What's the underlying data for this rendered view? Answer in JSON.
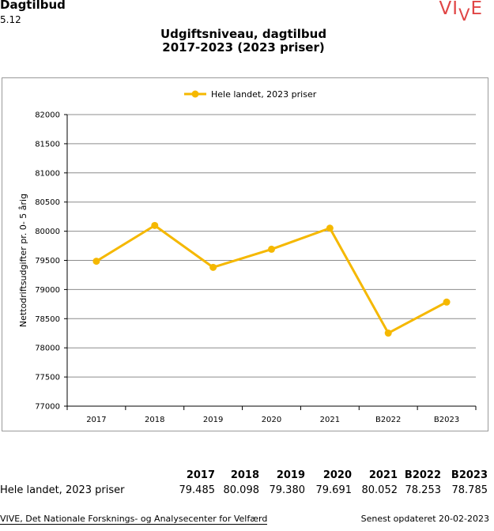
{
  "header": {
    "title": "Dagtilbud",
    "number": "5.12",
    "logo_text": "VIVE"
  },
  "chart_data": {
    "type": "line",
    "title_line1": "Udgiftsniveau, dagtilbud",
    "title_line2": "2017-2023 (2023 priser)",
    "ylabel": "Nettodriftsudgifter pr. 0- 5 årig",
    "xlabel": "",
    "ylim": [
      77000,
      82000
    ],
    "y_ticks": [
      77000,
      77500,
      78000,
      78500,
      79000,
      79500,
      80000,
      80500,
      81000,
      81500,
      82000
    ],
    "categories": [
      "2017",
      "2018",
      "2019",
      "2020",
      "2021",
      "B2022",
      "B2023"
    ],
    "series": [
      {
        "name": "Hele landet, 2023 priser",
        "values": [
          79485,
          80098,
          79380,
          79691,
          80052,
          78253,
          78785
        ],
        "color": "#f5b800"
      }
    ],
    "grid": true,
    "legend_position": "top-center"
  },
  "table": {
    "headers": [
      "2017",
      "2018",
      "2019",
      "2020",
      "2021",
      "B2022",
      "B2023"
    ],
    "row_label": "Hele landet, 2023 priser",
    "values": [
      "79.485",
      "80.098",
      "79.380",
      "79.691",
      "80.052",
      "78.253",
      "78.785"
    ]
  },
  "footer": {
    "source": "VIVE, Det Nationale Forsknings- og Analysecenter for Velfærd",
    "updated": "Senest opdateret 20-02-2023"
  }
}
